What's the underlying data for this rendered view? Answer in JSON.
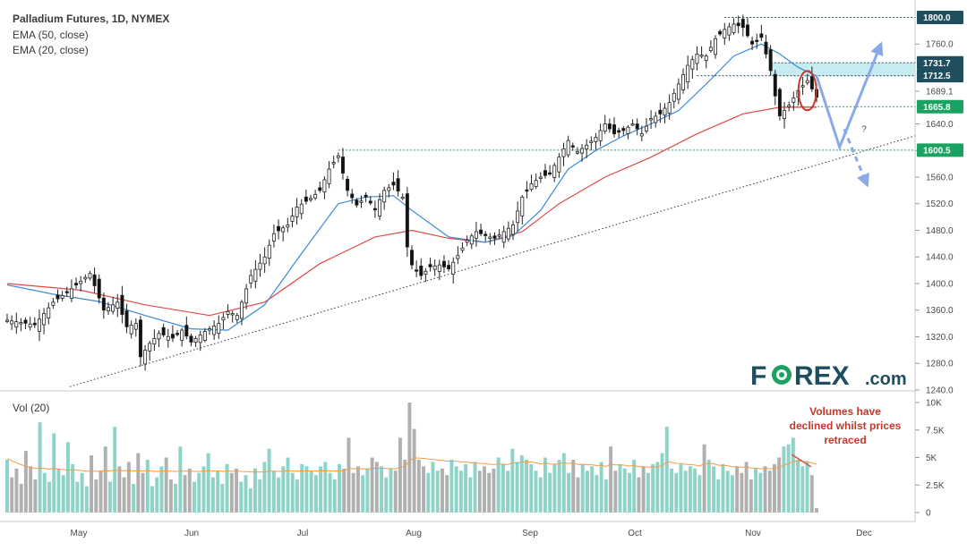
{
  "chart_data": {
    "type": "candlestick",
    "title": "Palladium Futures, 1D, NYMEX",
    "indicators": [
      "EMA (50, close)",
      "EMA (20, close)"
    ],
    "ylim": [
      1240,
      1810
    ],
    "y_ticks": [
      "1240.0",
      "1280.0",
      "1320.0",
      "1360.0",
      "1400.0",
      "1440.0",
      "1480.0",
      "1520.0",
      "1560.0",
      "1600.0",
      "1640.0",
      "1689.1",
      "1760.0"
    ],
    "x_ticks": [
      "May",
      "Jun",
      "Jul",
      "Aug",
      "Sep",
      "Oct",
      "Nov",
      "Dec"
    ],
    "price_levels": [
      {
        "label": "1800.0",
        "value": 1800.0,
        "color": "#1f4e5f"
      },
      {
        "label": "1731.7",
        "value": 1731.7,
        "color": "#1f4e5f"
      },
      {
        "label": "1712.5",
        "value": 1712.5,
        "color": "#1f4e5f"
      },
      {
        "label": "1665.8",
        "value": 1665.8,
        "color": "#1aa260"
      },
      {
        "label": "1600.5",
        "value": 1600.5,
        "color": "#1aa260"
      }
    ],
    "price_path": [
      [
        0,
        1345
      ],
      [
        6,
        1338
      ],
      [
        10,
        1372
      ],
      [
        14,
        1392
      ],
      [
        18,
        1415
      ],
      [
        21,
        1360
      ],
      [
        24,
        1372
      ],
      [
        26,
        1335
      ],
      [
        28,
        1340
      ],
      [
        29,
        1290
      ],
      [
        31,
        1310
      ],
      [
        33,
        1325
      ],
      [
        36,
        1318
      ],
      [
        38,
        1330
      ],
      [
        40,
        1312
      ],
      [
        43,
        1328
      ],
      [
        46,
        1340
      ],
      [
        48,
        1358
      ],
      [
        50,
        1352
      ],
      [
        53,
        1412
      ],
      [
        56,
        1440
      ],
      [
        58,
        1475
      ],
      [
        61,
        1488
      ],
      [
        63,
        1515
      ],
      [
        66,
        1528
      ],
      [
        68,
        1540
      ],
      [
        70,
        1572
      ],
      [
        72,
        1592
      ],
      [
        74,
        1540
      ],
      [
        76,
        1518
      ],
      [
        78,
        1530
      ],
      [
        80,
        1512
      ],
      [
        82,
        1540
      ],
      [
        84,
        1548
      ],
      [
        86,
        1530
      ],
      [
        87,
        1455
      ],
      [
        88,
        1428
      ],
      [
        90,
        1412
      ],
      [
        92,
        1425
      ],
      [
        94,
        1428
      ],
      [
        96,
        1422
      ],
      [
        98,
        1442
      ],
      [
        100,
        1465
      ],
      [
        102,
        1478
      ],
      [
        104,
        1472
      ],
      [
        106,
        1468
      ],
      [
        108,
        1478
      ],
      [
        110,
        1488
      ],
      [
        112,
        1530
      ],
      [
        114,
        1550
      ],
      [
        116,
        1560
      ],
      [
        118,
        1565
      ],
      [
        120,
        1590
      ],
      [
        122,
        1615
      ],
      [
        124,
        1598
      ],
      [
        126,
        1608
      ],
      [
        128,
        1620
      ],
      [
        130,
        1640
      ],
      [
        132,
        1625
      ],
      [
        134,
        1630
      ],
      [
        136,
        1640
      ],
      [
        138,
        1625
      ],
      [
        140,
        1648
      ],
      [
        142,
        1655
      ],
      [
        144,
        1672
      ],
      [
        146,
        1700
      ],
      [
        148,
        1728
      ],
      [
        150,
        1745
      ],
      [
        152,
        1742
      ],
      [
        154,
        1768
      ],
      [
        156,
        1782
      ],
      [
        158,
        1790
      ],
      [
        160,
        1785
      ],
      [
        162,
        1760
      ],
      [
        164,
        1770
      ],
      [
        166,
        1720
      ],
      [
        167,
        1682
      ],
      [
        168,
        1652
      ],
      [
        170,
        1668
      ],
      [
        172,
        1690
      ],
      [
        174,
        1705
      ],
      [
        176,
        1680
      ]
    ],
    "ema20_path": [
      [
        0,
        1398
      ],
      [
        10,
        1384
      ],
      [
        20,
        1373
      ],
      [
        30,
        1352
      ],
      [
        40,
        1332
      ],
      [
        48,
        1330
      ],
      [
        56,
        1368
      ],
      [
        64,
        1445
      ],
      [
        72,
        1520
      ],
      [
        78,
        1530
      ],
      [
        84,
        1532
      ],
      [
        88,
        1510
      ],
      [
        96,
        1470
      ],
      [
        104,
        1462
      ],
      [
        110,
        1472
      ],
      [
        116,
        1510
      ],
      [
        122,
        1572
      ],
      [
        128,
        1600
      ],
      [
        134,
        1622
      ],
      [
        140,
        1640
      ],
      [
        146,
        1660
      ],
      [
        152,
        1700
      ],
      [
        158,
        1742
      ],
      [
        164,
        1760
      ],
      [
        168,
        1745
      ],
      [
        172,
        1725
      ],
      [
        176,
        1712
      ]
    ],
    "ema50_path": [
      [
        0,
        1400
      ],
      [
        16,
        1390
      ],
      [
        30,
        1368
      ],
      [
        44,
        1352
      ],
      [
        56,
        1372
      ],
      [
        68,
        1430
      ],
      [
        80,
        1470
      ],
      [
        88,
        1480
      ],
      [
        96,
        1468
      ],
      [
        104,
        1462
      ],
      [
        112,
        1478
      ],
      [
        120,
        1520
      ],
      [
        130,
        1560
      ],
      [
        140,
        1590
      ],
      [
        150,
        1625
      ],
      [
        160,
        1655
      ],
      [
        168,
        1665
      ],
      [
        176,
        1665
      ]
    ],
    "trendline": [
      [
        0,
        1240
      ],
      [
        190,
        1622
      ]
    ],
    "projection": [
      [
        176,
        1712
      ],
      [
        181,
        1605
      ],
      [
        190,
        1760
      ]
    ],
    "projection_alt": [
      [
        182,
        1632
      ],
      [
        187,
        1548
      ]
    ],
    "projection_alt_label": "?",
    "volume": {
      "label": "Vol (20)",
      "ylim": [
        0,
        10000
      ],
      "y_ticks": [
        "0",
        "2.5K",
        "5K",
        "7.5K",
        "10K"
      ],
      "values": [
        4800,
        3200,
        4000,
        2600,
        5600,
        4200,
        3000,
        8200,
        3600,
        2800,
        7200,
        4000,
        3400,
        6400,
        4400,
        2800,
        3600,
        2400,
        5200,
        3000,
        3800,
        6000,
        2800,
        7800,
        4200,
        3200,
        4600,
        2600,
        5400,
        3600,
        4800,
        2400,
        3200,
        4200,
        5000,
        3000,
        2600,
        6000,
        3400,
        4000,
        2800,
        3600,
        4200,
        5400,
        3200,
        3800,
        2600,
        4400,
        3600,
        4000,
        2800,
        3400,
        2200,
        4000,
        3000,
        4600,
        5800,
        3800,
        3200,
        4200,
        5000,
        3600,
        3000,
        4400,
        4200,
        3800,
        3400,
        4200,
        4600,
        3600,
        3000,
        4400,
        4000,
        6800,
        3600,
        4200,
        3400,
        4000,
        5000,
        4600,
        4200,
        3200,
        4000,
        3800,
        6800,
        4800,
        10000,
        7600,
        4800,
        4200,
        3600,
        4600,
        3800,
        4000,
        3400,
        4800,
        4200,
        3800,
        4400,
        3200,
        4600,
        3800,
        4200,
        3600,
        4000,
        5000,
        4400,
        3800,
        5800,
        4600,
        5200,
        4800,
        4400,
        3800,
        3200,
        5000,
        3600,
        4400,
        4800,
        5400,
        3600,
        4800,
        3200,
        4400,
        3800,
        4200,
        3400,
        4600,
        3000,
        6000,
        3800,
        4400,
        4000,
        3600,
        4800,
        3200,
        4200,
        3600,
        4400,
        4600,
        5400,
        7800,
        4000,
        3600,
        4400,
        3800,
        4200,
        4000,
        3400,
        6200,
        4800,
        4200,
        3000,
        4400,
        3800,
        3400,
        4200,
        3600,
        4600,
        3000,
        4000,
        3600,
        4200,
        3800,
        4400,
        5000,
        6000,
        6200,
        6800,
        4800,
        4200,
        4600,
        3400,
        400
      ],
      "ema": [
        4900,
        4700,
        4520,
        4350,
        4200,
        4100,
        4000,
        4050,
        4000,
        3950,
        4000,
        3950,
        3900,
        3850,
        3900,
        3850,
        3800,
        3750,
        3780,
        3750,
        3760,
        3800,
        3780,
        3850,
        3820,
        3800,
        3810,
        3780,
        3800,
        3780,
        3800,
        3760,
        3740,
        3760,
        3780,
        3760,
        3730,
        3780,
        3760,
        3770,
        3740,
        3740,
        3760,
        3800,
        3780,
        3780,
        3740,
        3770,
        3760,
        3770,
        3740,
        3730,
        3680,
        3700,
        3680,
        3700,
        3760,
        3760,
        3740,
        3760,
        3800,
        3780,
        3760,
        3780,
        3790,
        3790,
        3780,
        3790,
        3810,
        3790,
        3770,
        3790,
        3790,
        4000,
        3980,
        3990,
        3960,
        3960,
        4000,
        4020,
        4030,
        3990,
        3990,
        3970,
        4150,
        4190,
        4700,
        4960,
        4950,
        4920,
        4850,
        4840,
        4780,
        4740,
        4670,
        4680,
        4650,
        4600,
        4590,
        4520,
        4520,
        4470,
        4450,
        4390,
        4370,
        4400,
        4400,
        4360,
        4500,
        4510,
        4570,
        4590,
        4590,
        4530,
        4420,
        4480,
        4410,
        4400,
        4430,
        4540,
        4460,
        4500,
        4370,
        4380,
        4340,
        4340,
        4270,
        4300,
        4190,
        4380,
        4330,
        4330,
        4300,
        4230,
        4280,
        4180,
        4180,
        4120,
        4130,
        4160,
        4260,
        4600,
        4560,
        4470,
        4460,
        4380,
        4360,
        4320,
        4230,
        4420,
        4460,
        4440,
        4300,
        4300,
        4250,
        4170,
        4170,
        4110,
        4140,
        4040,
        4030,
        3980,
        4000,
        3980,
        4020,
        4110,
        4300,
        4450,
        4660,
        4690,
        4640,
        4640,
        4500,
        4400
      ]
    },
    "annotations": {
      "volume_note": [
        "Volumes have",
        "declined whilst prices",
        "retraced"
      ]
    }
  },
  "logo": {
    "brand_left": "F",
    "brand_right": "REX",
    "brand_suffix": ".com"
  },
  "colors": {
    "up": "#ffffff",
    "down": "#111111",
    "ema20": "#3d8bd4",
    "ema50": "#e04a4a",
    "vol_up": "#8fd3c8",
    "vol_down": "#b0b0b0",
    "vol_ema": "#f39c4a",
    "projection": "#8aa9e8",
    "resistance_zone": "#b8e6ee",
    "logo_blue": "#1f4e5f",
    "logo_green": "#1aa260"
  }
}
